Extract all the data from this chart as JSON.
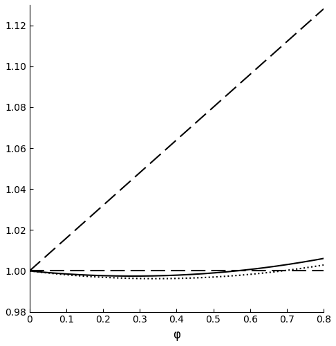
{
  "xlim": [
    0,
    0.8
  ],
  "ylim": [
    0.98,
    1.13
  ],
  "xlabel": "φ",
  "yticks": [
    0.98,
    1.0,
    1.02,
    1.04,
    1.06,
    1.08,
    1.1,
    1.12
  ],
  "xticks": [
    0.0,
    0.1,
    0.2,
    0.3,
    0.4,
    0.5,
    0.6,
    0.7,
    0.8
  ],
  "xtick_labels": [
    "0",
    "0.1",
    "0.2",
    "0.3",
    "0.4",
    "0.5",
    "0.6",
    "0.7",
    "0.8"
  ],
  "line_color": "#000000",
  "background_color": "#ffffff",
  "steep_slope": 0.16,
  "solid_a": -0.018,
  "solid_b": 0.032,
  "dotted_a": -0.022,
  "dotted_b": 0.032,
  "linewidth": 1.5,
  "n_points": 500,
  "dash_pattern_steep": [
    10,
    4
  ],
  "dash_pattern_flat": [
    10,
    4
  ]
}
